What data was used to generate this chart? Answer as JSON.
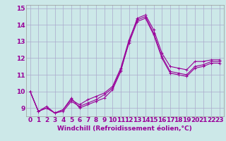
{
  "xlabel": "Windchill (Refroidissement éolien,°C)",
  "background_color": "#cce8e8",
  "line_color": "#990099",
  "grid_color": "#aaaacc",
  "x_hours": [
    0,
    1,
    2,
    3,
    4,
    5,
    6,
    7,
    8,
    9,
    10,
    11,
    12,
    13,
    14,
    15,
    16,
    17,
    18,
    19,
    20,
    21,
    22,
    23
  ],
  "series": [
    [
      10.0,
      8.8,
      9.1,
      8.7,
      8.9,
      9.6,
      9.0,
      9.2,
      9.4,
      9.6,
      10.1,
      11.2,
      13.0,
      14.4,
      14.6,
      13.7,
      12.3,
      11.5,
      11.4,
      11.3,
      11.8,
      11.8,
      11.9,
      11.9
    ],
    [
      10.0,
      8.8,
      9.0,
      8.7,
      8.9,
      9.5,
      9.2,
      9.5,
      9.7,
      9.9,
      10.3,
      11.4,
      13.1,
      14.3,
      14.5,
      13.5,
      12.1,
      11.2,
      11.1,
      11.0,
      11.5,
      11.6,
      11.8,
      11.8
    ],
    [
      10.0,
      8.8,
      9.0,
      8.7,
      8.8,
      9.4,
      9.1,
      9.3,
      9.5,
      9.8,
      10.2,
      11.3,
      12.9,
      14.2,
      14.4,
      13.4,
      12.0,
      11.1,
      11.0,
      10.9,
      11.4,
      11.5,
      11.7,
      11.7
    ]
  ],
  "ylim": [
    8.5,
    15.2
  ],
  "yticks": [
    9,
    10,
    11,
    12,
    13,
    14,
    15
  ],
  "xticks": [
    0,
    1,
    2,
    3,
    4,
    5,
    6,
    7,
    8,
    9,
    10,
    11,
    12,
    13,
    14,
    15,
    16,
    17,
    18,
    19,
    20,
    21,
    22,
    23
  ],
  "xlabel_fontsize": 6.5,
  "tick_fontsize": 6.5,
  "marker": "+",
  "linewidth": 0.8,
  "markersize": 3,
  "markeredgewidth": 0.7
}
